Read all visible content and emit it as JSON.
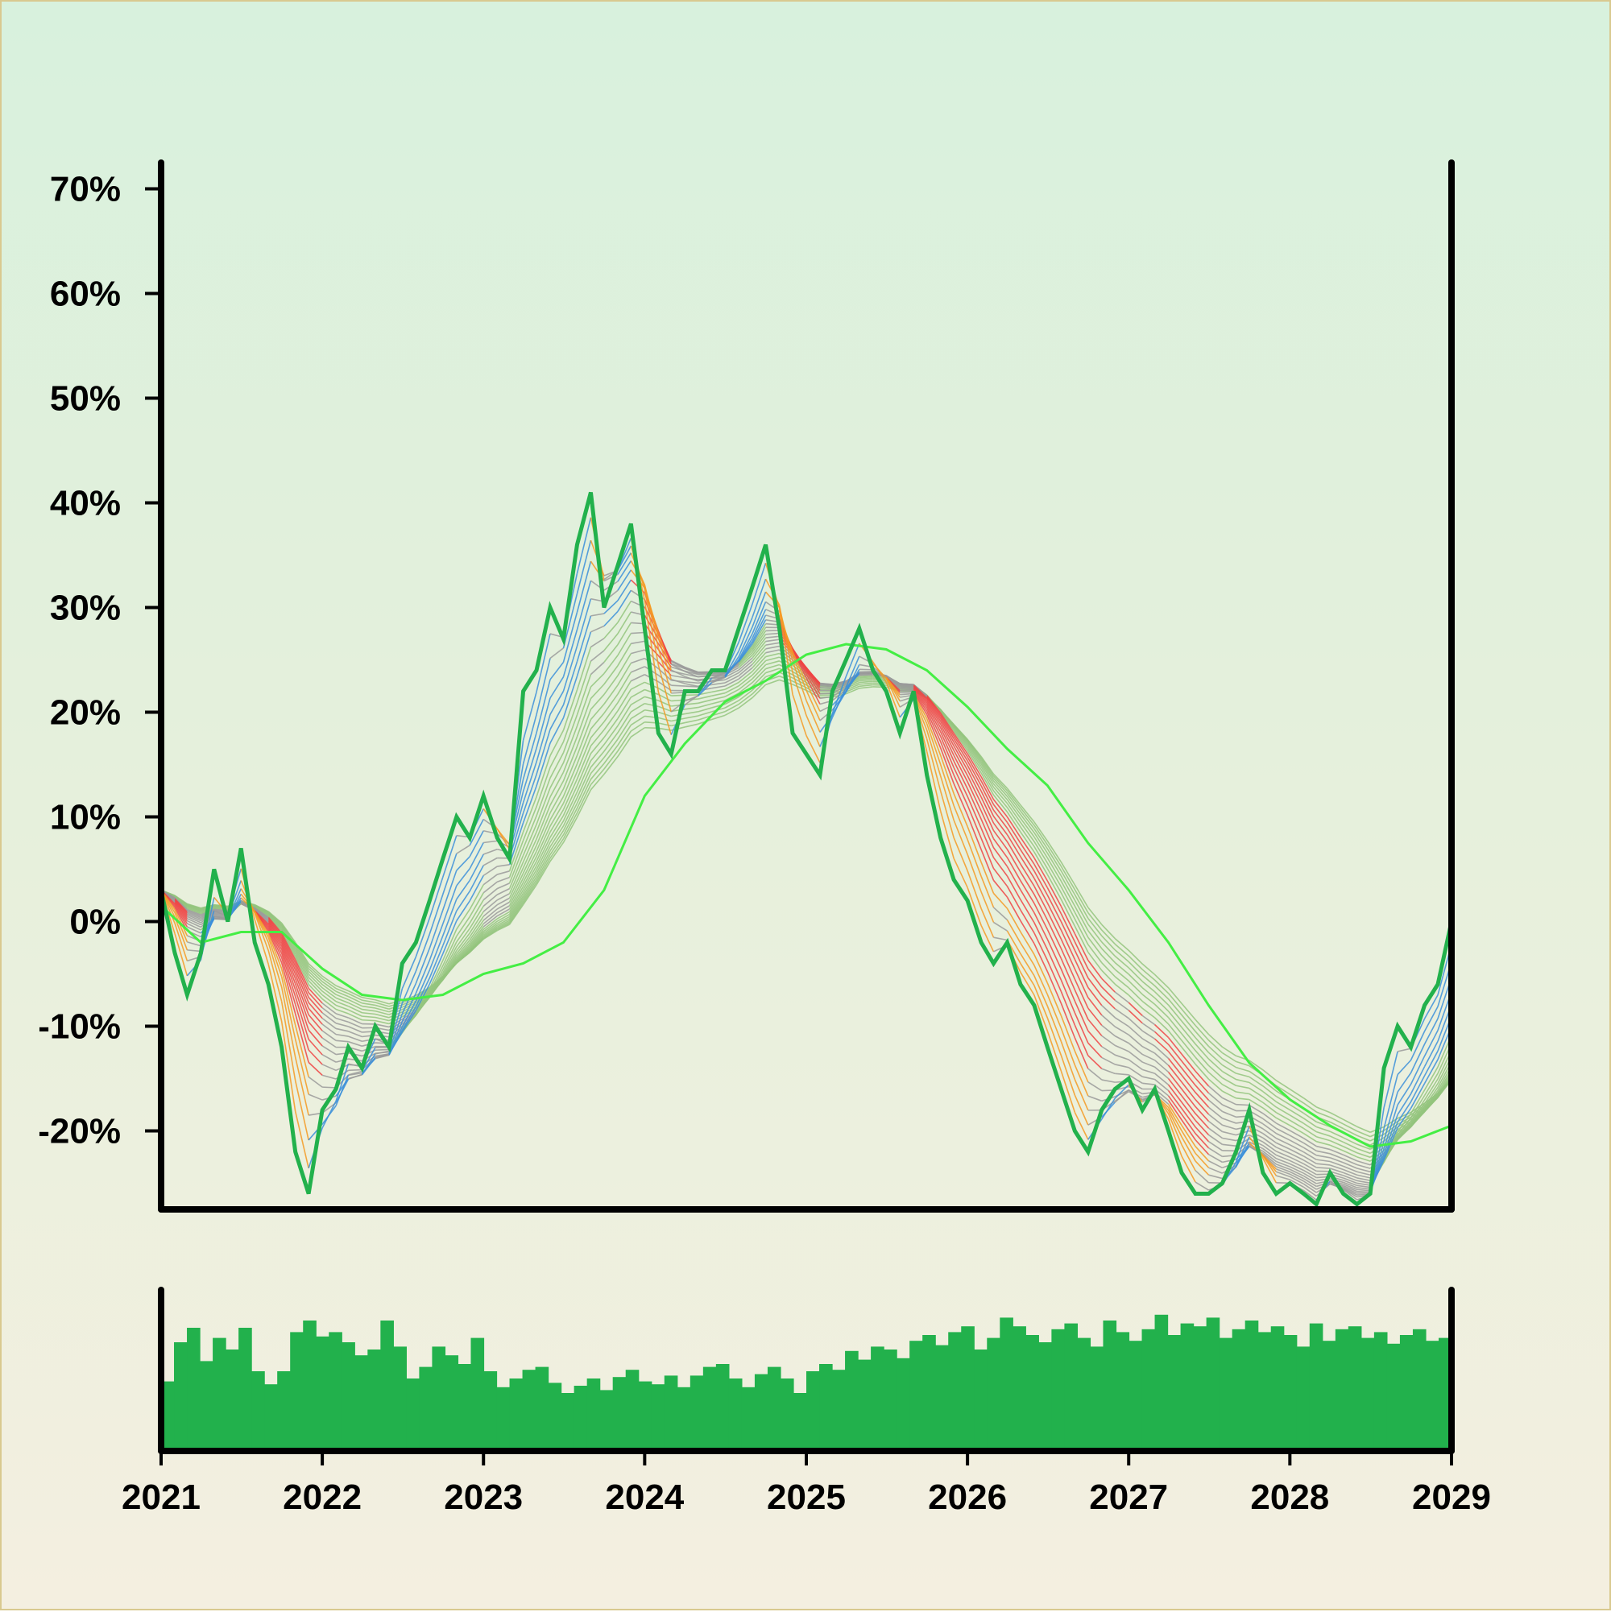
{
  "chart_data": [
    {
      "type": "line",
      "title": "",
      "xlabel": "",
      "ylabel": "",
      "y_unit": "%",
      "xlim": [
        "2021-01-01",
        "2029-01-01"
      ],
      "ylim": [
        -27.5,
        72.5
      ],
      "grid": false,
      "x_tick_labels": [
        "2021",
        "2022",
        "2023",
        "2024",
        "2025",
        "2026",
        "2027",
        "2028",
        "2029"
      ],
      "y_tick_labels": [
        "-20%",
        "-10%",
        "0%",
        "10%",
        "20%",
        "30%",
        "40%",
        "50%",
        "60%",
        "70%"
      ],
      "y_tick_values": [
        -20,
        -10,
        0,
        10,
        20,
        30,
        40,
        50,
        60,
        70
      ],
      "colors": {
        "price": "#22b14c",
        "moving_average": "#44ee44",
        "ribbon_up": "#3b8fd9",
        "ribbon_down": "#ef4444",
        "ribbon_neutral": "#9a9a9a",
        "ribbon_slow": "#93c47d",
        "ribbon_accel": "#f59a23"
      },
      "series": [
        {
          "key": "price",
          "x": [
            "2021-01-01",
            "2021-02-01",
            "2021-03-01",
            "2021-04-01",
            "2021-05-01",
            "2021-06-01",
            "2021-07-01",
            "2021-08-01",
            "2021-09-01",
            "2021-10-01",
            "2021-11-01",
            "2021-12-01",
            "2022-01-01",
            "2022-02-01",
            "2022-03-01",
            "2022-04-01",
            "2022-05-01",
            "2022-06-01",
            "2022-07-01",
            "2022-08-01",
            "2022-09-01",
            "2022-10-01",
            "2022-11-01",
            "2022-12-01",
            "2023-01-01",
            "2023-02-01",
            "2023-03-01",
            "2023-04-01",
            "2023-05-01",
            "2023-06-01",
            "2023-07-01",
            "2023-08-01",
            "2023-09-01",
            "2023-10-01",
            "2023-11-01",
            "2023-12-01",
            "2024-01-01",
            "2024-02-01",
            "2024-03-01",
            "2024-04-01",
            "2024-05-01",
            "2024-06-01",
            "2024-07-01",
            "2024-08-01",
            "2024-09-01",
            "2024-10-01",
            "2024-11-01",
            "2024-12-01",
            "2025-01-01",
            "2025-02-01",
            "2025-03-01",
            "2025-04-01",
            "2025-05-01",
            "2025-06-01",
            "2025-07-01",
            "2025-08-01",
            "2025-09-01",
            "2025-10-01",
            "2025-11-01",
            "2025-12-01",
            "2026-01-01",
            "2026-02-01",
            "2026-03-01",
            "2026-04-01",
            "2026-05-01",
            "2026-06-01",
            "2026-07-01",
            "2026-08-01",
            "2026-09-01",
            "2026-10-01",
            "2026-11-01",
            "2026-12-01",
            "2027-01-01",
            "2027-02-01",
            "2027-03-01",
            "2027-04-01",
            "2027-05-01",
            "2027-06-01",
            "2027-07-01",
            "2027-08-01",
            "2027-09-01",
            "2027-10-01",
            "2027-11-01",
            "2027-12-01",
            "2028-01-01",
            "2028-02-01",
            "2028-03-01",
            "2028-04-01",
            "2028-05-01",
            "2028-06-01",
            "2028-07-01",
            "2028-08-01",
            "2028-09-01",
            "2028-10-01",
            "2028-11-01",
            "2028-12-01",
            "2029-01-01"
          ],
          "values": [
            3,
            -3,
            -7,
            -3,
            5,
            0,
            7,
            -2,
            -6,
            -12,
            -22,
            -26,
            -18,
            -16,
            -12,
            -14,
            -10,
            -12,
            -4,
            -2,
            2,
            6,
            10,
            8,
            12,
            8,
            6,
            22,
            24,
            30,
            27,
            36,
            41,
            30,
            34,
            38,
            28,
            18,
            16,
            22,
            22,
            24,
            24,
            28,
            32,
            36,
            28,
            18,
            16,
            14,
            22,
            25,
            28,
            24,
            22,
            18,
            22,
            14,
            8,
            4,
            2,
            -2,
            -4,
            -2,
            -6,
            -8,
            -12,
            -16,
            -20,
            -22,
            -18,
            -16,
            -15,
            -18,
            -16,
            -20,
            -24,
            -26,
            -26,
            -25,
            -22,
            -18,
            -24,
            -26,
            -25,
            -26,
            -27,
            -24,
            -26,
            -27,
            -26,
            -14,
            -10,
            -12,
            -8,
            -6,
            0
          ]
        },
        {
          "key": "moving_average",
          "x": [
            "2021-01-01",
            "2021-04-01",
            "2021-07-01",
            "2021-10-01",
            "2022-01-01",
            "2022-04-01",
            "2022-07-01",
            "2022-10-01",
            "2023-01-01",
            "2023-04-01",
            "2023-07-01",
            "2023-10-01",
            "2024-01-01",
            "2024-04-01",
            "2024-07-01",
            "2024-10-01",
            "2025-01-01",
            "2025-04-01",
            "2025-07-01",
            "2025-10-01",
            "2026-01-01",
            "2026-04-01",
            "2026-07-01",
            "2026-10-01",
            "2027-01-01",
            "2027-04-01",
            "2027-07-01",
            "2027-10-01",
            "2028-01-01",
            "2028-04-01",
            "2028-07-01",
            "2028-10-01",
            "2029-01-01"
          ],
          "values": [
            1.5,
            -2,
            -1,
            -1,
            -4.5,
            -7,
            -7.5,
            -7,
            -5,
            -4,
            -2,
            3,
            12,
            17,
            21,
            23,
            25.5,
            26.5,
            26,
            24,
            20.5,
            16.5,
            13,
            7.5,
            3,
            -2,
            -8,
            -13.5,
            -17,
            -19.5,
            -21.5,
            -21,
            -19.5
          ]
        }
      ]
    },
    {
      "type": "bar",
      "title": "",
      "xlabel": "",
      "ylabel": "",
      "description_of_values": "relative volume per period (unlabeled axis)",
      "ylim": [
        0,
        1
      ],
      "values": [
        0.48,
        0.75,
        0.85,
        0.62,
        0.78,
        0.7,
        0.85,
        0.55,
        0.46,
        0.55,
        0.82,
        0.9,
        0.79,
        0.82,
        0.75,
        0.66,
        0.7,
        0.9,
        0.72,
        0.5,
        0.58,
        0.72,
        0.66,
        0.6,
        0.78,
        0.55,
        0.44,
        0.5,
        0.56,
        0.58,
        0.47,
        0.4,
        0.45,
        0.5,
        0.42,
        0.51,
        0.56,
        0.48,
        0.46,
        0.52,
        0.44,
        0.52,
        0.58,
        0.6,
        0.5,
        0.44,
        0.53,
        0.58,
        0.5,
        0.4,
        0.55,
        0.6,
        0.56,
        0.69,
        0.63,
        0.72,
        0.7,
        0.64,
        0.76,
        0.8,
        0.73,
        0.82,
        0.86,
        0.7,
        0.78,
        0.92,
        0.86,
        0.8,
        0.75,
        0.84,
        0.88,
        0.78,
        0.72,
        0.9,
        0.82,
        0.76,
        0.84,
        0.94,
        0.8,
        0.88,
        0.86,
        0.92,
        0.78,
        0.84,
        0.9,
        0.82,
        0.86,
        0.8,
        0.72,
        0.88,
        0.76,
        0.84,
        0.86,
        0.78,
        0.82,
        0.74,
        0.8,
        0.84,
        0.76,
        0.78
      ]
    }
  ]
}
